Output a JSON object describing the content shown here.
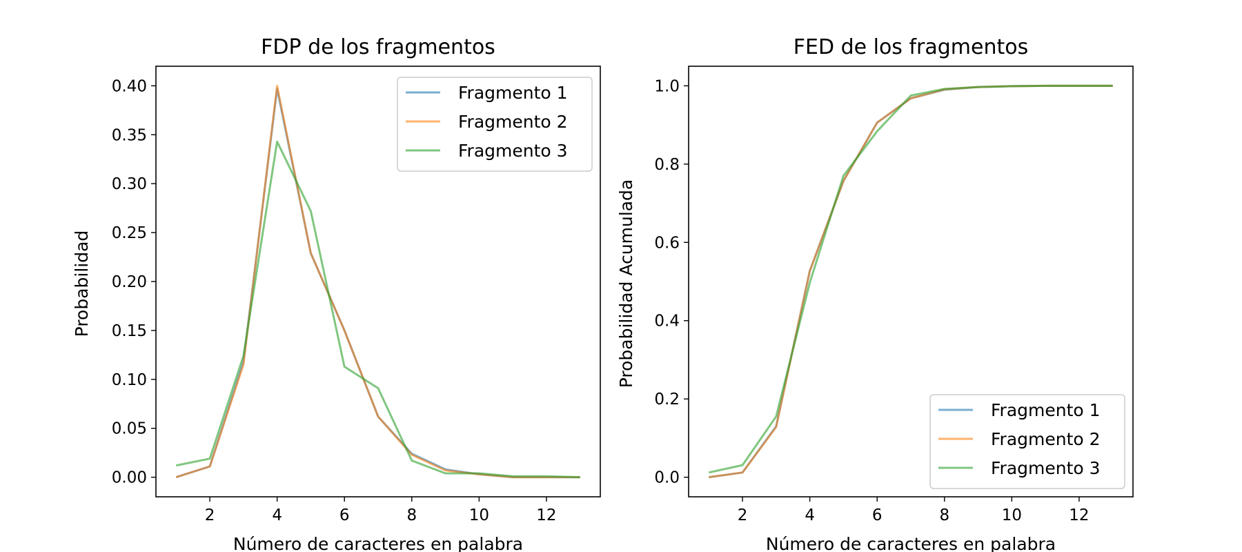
{
  "colors": {
    "series": [
      "#1f77b4",
      "#ff7f0e",
      "#2ca02c"
    ]
  },
  "chart_data": [
    {
      "type": "line",
      "title": "FDP de los fragmentos",
      "xlabel": "Número de caracteres en palabra",
      "ylabel": "Probabilidad",
      "xlim": [
        0.4,
        13.6
      ],
      "ylim": [
        -0.02,
        0.42
      ],
      "xticks": [
        2,
        4,
        6,
        8,
        10,
        12
      ],
      "yticks": [
        0.0,
        0.05,
        0.1,
        0.15,
        0.2,
        0.25,
        0.3,
        0.35,
        0.4
      ],
      "ytick_labels": [
        "0.00",
        "0.05",
        "0.10",
        "0.15",
        "0.20",
        "0.25",
        "0.30",
        "0.35",
        "0.40"
      ],
      "legend": "top-right",
      "grid": false,
      "x": [
        1,
        2,
        3,
        4,
        5,
        6,
        7,
        8,
        9,
        10,
        11,
        12,
        13
      ],
      "series": [
        {
          "name": "Fragmento 1",
          "values": [
            0.0,
            0.011,
            0.118,
            0.397,
            0.229,
            0.15,
            0.062,
            0.024,
            0.008,
            0.003,
            0.0,
            0.0,
            0.0
          ]
        },
        {
          "name": "Fragmento 2",
          "values": [
            0.0,
            0.011,
            0.115,
            0.4,
            0.229,
            0.15,
            0.062,
            0.023,
            0.007,
            0.003,
            0.0,
            0.0,
            0.0
          ]
        },
        {
          "name": "Fragmento 3",
          "values": [
            0.012,
            0.019,
            0.124,
            0.343,
            0.272,
            0.113,
            0.091,
            0.017,
            0.004,
            0.004,
            0.001,
            0.001,
            0.0
          ]
        }
      ]
    },
    {
      "type": "line",
      "title": "FED de los fragmentos",
      "xlabel": "Número de caracteres en palabra",
      "ylabel": "Probabilidad Acumulada",
      "xlim": [
        0.4,
        13.6
      ],
      "ylim": [
        -0.05,
        1.05
      ],
      "xticks": [
        2,
        4,
        6,
        8,
        10,
        12
      ],
      "yticks": [
        0.0,
        0.2,
        0.4,
        0.6,
        0.8,
        1.0
      ],
      "ytick_labels": [
        "0.0",
        "0.2",
        "0.4",
        "0.6",
        "0.8",
        "1.0"
      ],
      "legend": "bottom-right",
      "grid": false,
      "x": [
        1,
        2,
        3,
        4,
        5,
        6,
        7,
        8,
        9,
        10,
        11,
        12,
        13
      ],
      "series": [
        {
          "name": "Fragmento 1",
          "values": [
            0.0,
            0.012,
            0.13,
            0.527,
            0.757,
            0.906,
            0.968,
            0.99,
            0.997,
            0.999,
            1.0,
            1.0,
            1.0
          ]
        },
        {
          "name": "Fragmento 2",
          "values": [
            0.0,
            0.012,
            0.128,
            0.527,
            0.757,
            0.906,
            0.968,
            0.991,
            0.997,
            0.999,
            1.0,
            1.0,
            1.0
          ]
        },
        {
          "name": "Fragmento 3",
          "values": [
            0.012,
            0.031,
            0.155,
            0.497,
            0.77,
            0.884,
            0.975,
            0.992,
            0.997,
            0.999,
            1.0,
            1.0,
            1.0
          ]
        }
      ]
    }
  ]
}
